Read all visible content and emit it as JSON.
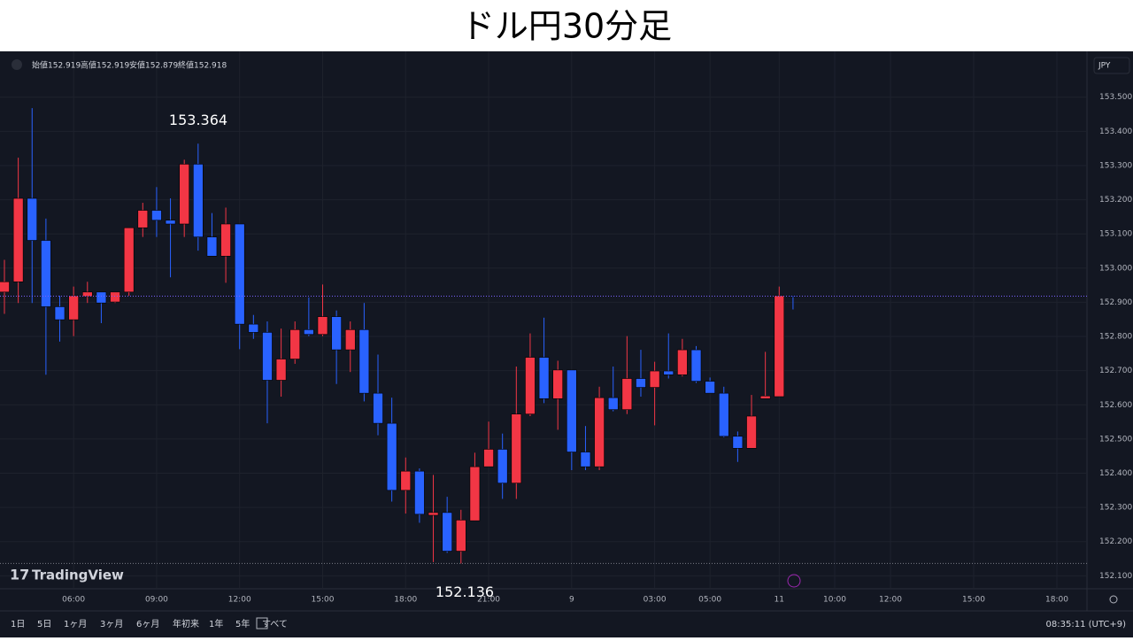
{
  "header": {
    "title": "ドル円30分足"
  },
  "chart_data": {
    "type": "candlestick",
    "ohlc_labels": [
      "始値",
      "高値",
      "安値",
      "終値"
    ],
    "currency": "JPY",
    "categories": [
      null,
      null,
      null,
      null,
      null,
      "06:00",
      null,
      null,
      null,
      null,
      null,
      "09:00",
      null,
      null,
      null,
      null,
      null,
      "12:00",
      null,
      null,
      null,
      null,
      null,
      "15:00",
      null,
      null,
      null,
      null,
      null,
      "18:00",
      null,
      null,
      null,
      null,
      null,
      "21:00",
      null,
      null,
      null,
      null,
      null,
      "9",
      null,
      null,
      null,
      null,
      null,
      "03:00",
      null,
      null,
      null,
      "05:00",
      null,
      null,
      null,
      null,
      "11",
      null
    ],
    "future_xticks": [
      "10:00",
      "12:00",
      "15:00",
      "18:00"
    ],
    "open": [
      152.93,
      152.96,
      153.204,
      153.081,
      152.887,
      152.849,
      152.917,
      152.93,
      152.901,
      152.93,
      153.118,
      153.169,
      153.14,
      153.129,
      153.304,
      153.091,
      153.035,
      153.129,
      152.836,
      152.812,
      152.672,
      152.734,
      152.82,
      152.806,
      152.858,
      152.761,
      152.82,
      152.634,
      152.546,
      152.35,
      152.406,
      152.277,
      152.285,
      152.172,
      152.261,
      152.419,
      152.47,
      152.371,
      152.573,
      152.739,
      152.618,
      152.702,
      152.462,
      152.419,
      152.621,
      152.586,
      152.677,
      152.651,
      152.699,
      152.688,
      152.761,
      152.669,
      152.634,
      152.508,
      152.473,
      152.618,
      152.624,
      152.919
    ],
    "high": [
      153.024,
      153.323,
      153.468,
      153.145,
      152.919,
      152.946,
      152.96,
      152.93,
      152.93,
      153.118,
      153.191,
      153.237,
      153.204,
      153.317,
      153.364,
      153.161,
      153.177,
      153.129,
      152.863,
      152.844,
      152.823,
      152.844,
      152.914,
      152.952,
      152.876,
      152.844,
      152.898,
      152.747,
      152.621,
      152.446,
      152.414,
      152.395,
      152.331,
      152.293,
      152.46,
      152.551,
      152.516,
      152.712,
      152.809,
      152.855,
      152.729,
      152.702,
      152.538,
      152.653,
      152.712,
      152.801,
      152.761,
      152.726,
      152.809,
      152.793,
      152.772,
      152.68,
      152.653,
      152.522,
      152.629,
      152.755,
      152.946,
      152.919
    ],
    "low": [
      152.866,
      152.898,
      152.898,
      152.688,
      152.785,
      152.801,
      152.898,
      152.839,
      152.898,
      152.919,
      153.091,
      153.091,
      152.973,
      153.091,
      153.051,
      153.035,
      152.957,
      152.763,
      152.793,
      152.546,
      152.624,
      152.72,
      152.801,
      152.801,
      152.661,
      152.696,
      152.61,
      152.511,
      152.317,
      152.282,
      152.255,
      152.14,
      152.167,
      152.136,
      152.261,
      152.419,
      152.325,
      152.325,
      152.567,
      152.605,
      152.527,
      152.409,
      152.409,
      152.409,
      152.581,
      152.573,
      152.624,
      152.54,
      152.677,
      152.683,
      152.664,
      152.634,
      152.505,
      152.433,
      152.473,
      152.618,
      152.624,
      152.879
    ],
    "close": [
      152.96,
      153.204,
      153.081,
      152.887,
      152.849,
      152.919,
      152.93,
      152.898,
      152.93,
      153.118,
      153.169,
      153.14,
      153.129,
      153.304,
      153.091,
      153.035,
      153.129,
      152.836,
      152.812,
      152.672,
      152.734,
      152.82,
      152.806,
      152.858,
      152.761,
      152.82,
      152.634,
      152.546,
      152.35,
      152.406,
      152.28,
      152.285,
      152.172,
      152.263,
      152.419,
      152.47,
      152.371,
      152.573,
      152.739,
      152.618,
      152.702,
      152.462,
      152.419,
      152.621,
      152.586,
      152.677,
      152.651,
      152.699,
      152.688,
      152.761,
      152.669,
      152.634,
      152.508,
      152.473,
      152.567,
      152.626,
      152.919,
      152.918
    ],
    "up_color": "#f23645",
    "down_color": "#2962ff",
    "high_annotation": 153.364,
    "low_annotation": 152.136,
    "ylim": [
      152.062,
      153.634
    ],
    "yticks": [
      {
        "value": 153.5,
        "label": "153.500"
      },
      {
        "value": 153.4,
        "label": "153.400"
      },
      {
        "value": 153.3,
        "label": "153.300"
      },
      {
        "value": 153.2,
        "label": "153.200"
      },
      {
        "value": 153.1,
        "label": "153.100"
      },
      {
        "value": 153.0,
        "label": "153.000"
      },
      {
        "value": 152.9,
        "label": "152.900"
      },
      {
        "value": 152.8,
        "label": "152.800"
      },
      {
        "value": 152.7,
        "label": "152.700"
      },
      {
        "value": 152.6,
        "label": "152.600"
      },
      {
        "value": 152.5,
        "label": "152.500"
      },
      {
        "value": 152.4,
        "label": "152.400"
      },
      {
        "value": 152.3,
        "label": "152.300"
      },
      {
        "value": 152.2,
        "label": "152.200"
      },
      {
        "value": 152.1,
        "label": "152.100"
      }
    ],
    "grid": true
  },
  "footer": {
    "logo": "TradingView",
    "ranges": [
      "1日",
      "5日",
      "1ヶ月",
      "3ヶ月",
      "6ヶ月",
      "年初来",
      "1年",
      "5年",
      "すべて"
    ],
    "clock": "08:35:11 (UTC+9)"
  }
}
